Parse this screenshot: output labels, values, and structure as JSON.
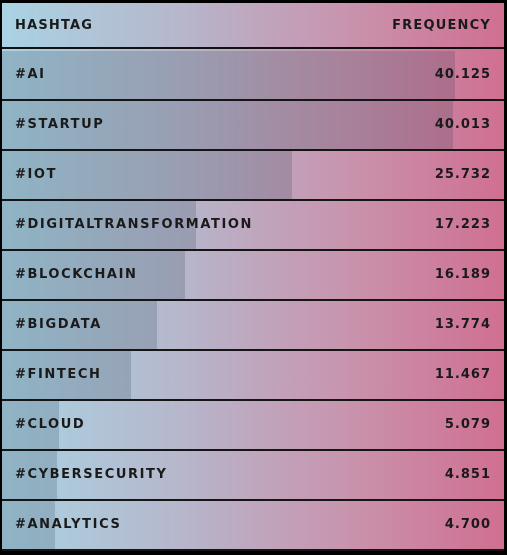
{
  "chart_data": {
    "type": "bar",
    "orientation": "horizontal",
    "columns": [
      "HASHTAG",
      "FREQUENCY"
    ],
    "categories": [
      "#AI",
      "#STARTUP",
      "#IOT",
      "#DIGITALTRANSFORMATION",
      "#BLOCKCHAIN",
      "#BIGDATA",
      "#FINTECH",
      "#CLOUD",
      "#CYBERSECURITY",
      "#ANALYTICS"
    ],
    "values": [
      40.125,
      40.013,
      25.732,
      17.223,
      16.189,
      13.774,
      11.467,
      5.079,
      4.851,
      4.7
    ],
    "value_labels": [
      "40.125",
      "40.013",
      "25.732",
      "17.223",
      "16.189",
      "13.774",
      "11.467",
      "5.079",
      "4.851",
      "4.700"
    ]
  }
}
